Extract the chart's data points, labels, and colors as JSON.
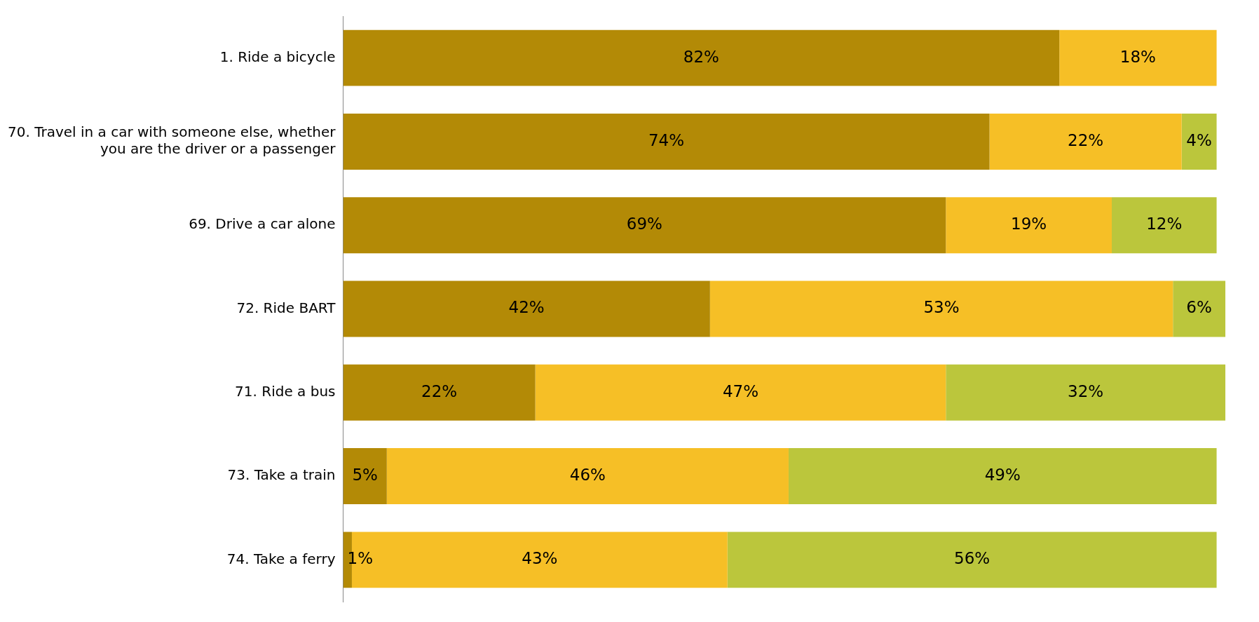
{
  "chart_data": {
    "type": "bar",
    "orientation": "horizontal",
    "stacked": true,
    "categories": [
      "1. Ride a bicycle",
      "70. Travel in a car with someone else, whether you are the driver or a passenger",
      "69. Drive a car alone",
      "72. Ride BART",
      "71. Ride a bus",
      "73. Take a train",
      "74. Take a ferry"
    ],
    "series": [
      {
        "color": "#b38a06",
        "values": [
          82,
          74,
          69,
          42,
          22,
          5,
          1
        ],
        "value_labels": [
          "82%",
          "74%",
          "69%",
          "42%",
          "22%",
          "5%",
          "1%"
        ]
      },
      {
        "color": "#f6bf26",
        "values": [
          18,
          22,
          19,
          53,
          47,
          46,
          43
        ],
        "value_labels": [
          "18%",
          "22%",
          "19%",
          "53%",
          "47%",
          "46%",
          "43%"
        ]
      },
      {
        "color": "#bbc63c",
        "values": [
          null,
          4,
          12,
          6,
          32,
          49,
          56
        ],
        "value_labels": [
          null,
          "4%",
          "12%",
          "6%",
          "32%",
          "49%",
          "56%"
        ]
      }
    ],
    "legend": false,
    "tick_labels": "y"
  }
}
